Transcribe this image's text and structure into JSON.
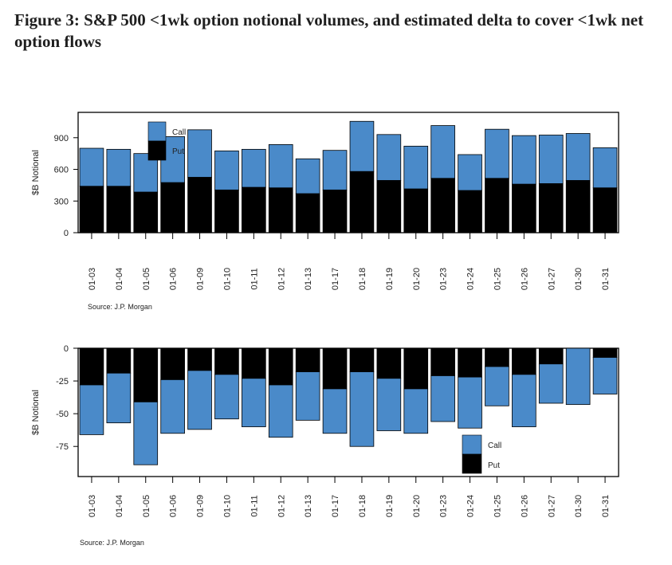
{
  "title": "Figure 3: S&P 500 <1wk option notional volumes, and estimated delta to cover <1wk net option flows",
  "colors": {
    "call": "#4a8ac9",
    "put": "#000000"
  },
  "chart_data": [
    {
      "type": "bar",
      "stacked": true,
      "title": "",
      "ylabel": "$B Notional",
      "ylim": [
        0,
        1140
      ],
      "yticks": [
        0,
        300,
        600,
        900
      ],
      "categories": [
        "01-03",
        "01-04",
        "01-05",
        "01-06",
        "01-09",
        "01-10",
        "01-11",
        "01-12",
        "01-13",
        "01-17",
        "01-18",
        "01-19",
        "01-20",
        "01-23",
        "01-24",
        "01-25",
        "01-26",
        "01-27",
        "01-30",
        "01-31"
      ],
      "series": [
        {
          "name": "Put",
          "values": [
            440,
            440,
            385,
            475,
            525,
            405,
            430,
            425,
            370,
            405,
            580,
            495,
            415,
            515,
            400,
            515,
            460,
            465,
            495,
            425
          ]
        },
        {
          "name": "Call",
          "values": [
            360,
            350,
            365,
            435,
            450,
            370,
            360,
            410,
            330,
            375,
            475,
            435,
            405,
            500,
            340,
            465,
            460,
            460,
            445,
            380
          ]
        }
      ],
      "legend": [
        "Call",
        "Put"
      ],
      "source": "Source: J.P. Morgan"
    },
    {
      "type": "bar",
      "stacked": true,
      "title": "",
      "ylabel": "$B Notional",
      "ylim": [
        -98,
        0
      ],
      "yticks": [
        0,
        -25,
        -50,
        -75
      ],
      "categories": [
        "01-03",
        "01-04",
        "01-05",
        "01-06",
        "01-09",
        "01-10",
        "01-11",
        "01-12",
        "01-13",
        "01-17",
        "01-18",
        "01-19",
        "01-20",
        "01-23",
        "01-24",
        "01-25",
        "01-26",
        "01-27",
        "01-30",
        "01-31"
      ],
      "series": [
        {
          "name": "Put",
          "values": [
            -28,
            -19,
            -41,
            -24,
            -17,
            -20,
            -23,
            -28,
            -18,
            -31,
            -18,
            -23,
            -31,
            -21,
            -22,
            -14,
            -20,
            -12,
            0,
            -7
          ]
        },
        {
          "name": "Call",
          "values": [
            -38,
            -38,
            -48,
            -41,
            -45,
            -34,
            -37,
            -40,
            -37,
            -34,
            -57,
            -40,
            -34,
            -35,
            -39,
            -30,
            -40,
            -30,
            -43,
            -28
          ]
        }
      ],
      "legend": [
        "Call",
        "Put"
      ],
      "source": "Source: J.P. Morgan"
    }
  ]
}
